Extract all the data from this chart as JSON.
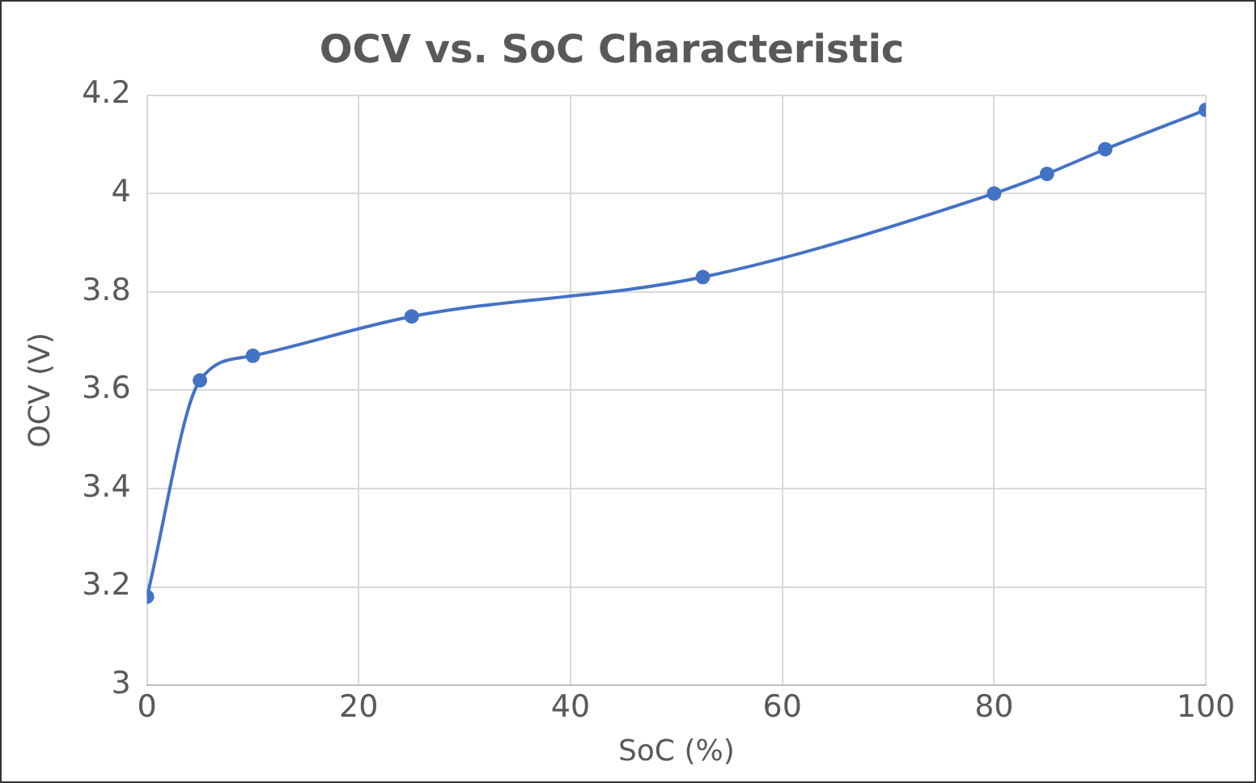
{
  "chart_data": {
    "type": "line",
    "title": "OCV vs. SoC Characteristic",
    "xlabel": "SoC (%)",
    "ylabel": "OCV (V)",
    "x": [
      0,
      5,
      10,
      25,
      52.5,
      80,
      85,
      90.5,
      100
    ],
    "series": [
      {
        "color": "#4472c4",
        "values": [
          3.18,
          3.62,
          3.67,
          3.75,
          3.83,
          4.0,
          4.04,
          4.09,
          4.17
        ]
      }
    ],
    "xlim": [
      0,
      100
    ],
    "xticks": [
      0,
      20,
      40,
      60,
      80,
      100
    ],
    "ylim": [
      3,
      4.2
    ],
    "yticks": [
      3,
      3.2,
      3.4,
      3.6,
      3.8,
      4,
      4.2
    ],
    "grid": true,
    "legend": false,
    "marker": "circle",
    "line_style": "solid"
  }
}
